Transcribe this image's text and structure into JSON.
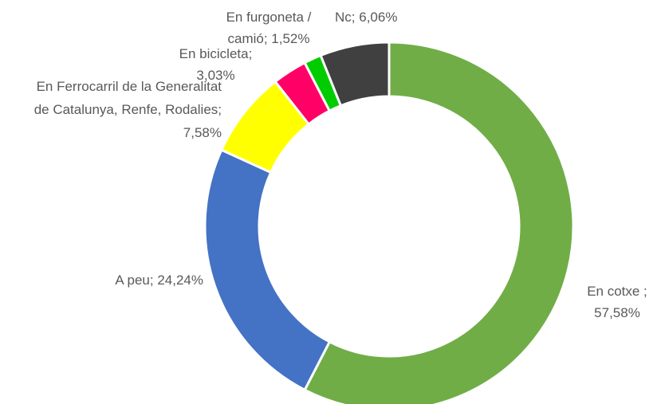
{
  "chart_data": {
    "type": "donut",
    "categories": [
      "En cotxe ;",
      "A peu;",
      "En Ferrocarril de la Generalitat de Catalunya, Renfe, Rodalies;",
      "En bicicleta;",
      "En furgoneta / camió;",
      "Nc;"
    ],
    "values": [
      57.58,
      24.24,
      7.58,
      3.03,
      1.52,
      6.06
    ],
    "value_labels": [
      "57,58%",
      "24,24%",
      "7,58%",
      "3,03%",
      "1,52%",
      "6,06%"
    ],
    "colors": [
      "#70ad47",
      "#4472c4",
      "#ffff00",
      "#ff0066",
      "#00cc00",
      "#404040"
    ]
  }
}
